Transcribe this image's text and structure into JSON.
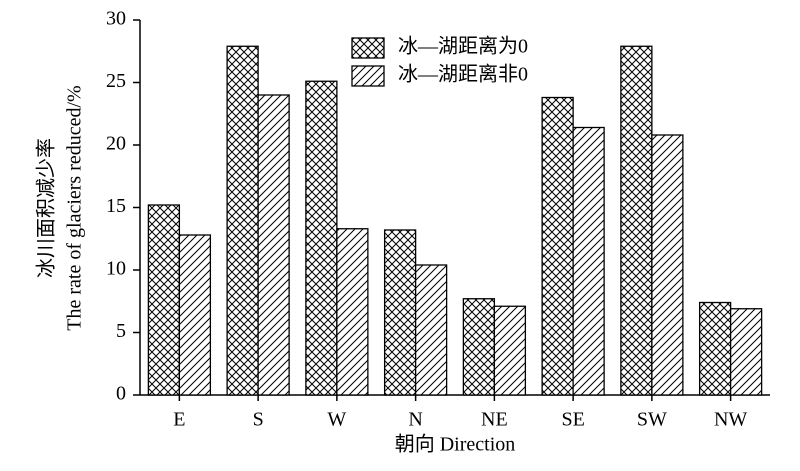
{
  "chart_data": {
    "type": "bar",
    "x_label": "朝向 Direction",
    "y_label": [
      "冰川面积减少率",
      "The rate of glaciers reduced/%"
    ],
    "categories": [
      "E",
      "S",
      "W",
      "N",
      "NE",
      "SE",
      "SW",
      "NW"
    ],
    "series": [
      {
        "name": "冰—湖距离为0",
        "color": "#000000",
        "pattern": "crosshatch",
        "values": [
          15.2,
          27.9,
          25.1,
          13.2,
          7.7,
          23.8,
          27.9,
          7.4
        ]
      },
      {
        "name": "冰—湖距离非0",
        "color": "#000000",
        "pattern": "diagonal",
        "values": [
          12.8,
          24.0,
          13.3,
          10.4,
          7.1,
          21.4,
          20.8,
          6.9
        ]
      }
    ],
    "ylim": [
      0,
      30
    ],
    "yticks": [
      0,
      5,
      10,
      15,
      20,
      25,
      30
    ],
    "grid": false,
    "legend": "top"
  }
}
